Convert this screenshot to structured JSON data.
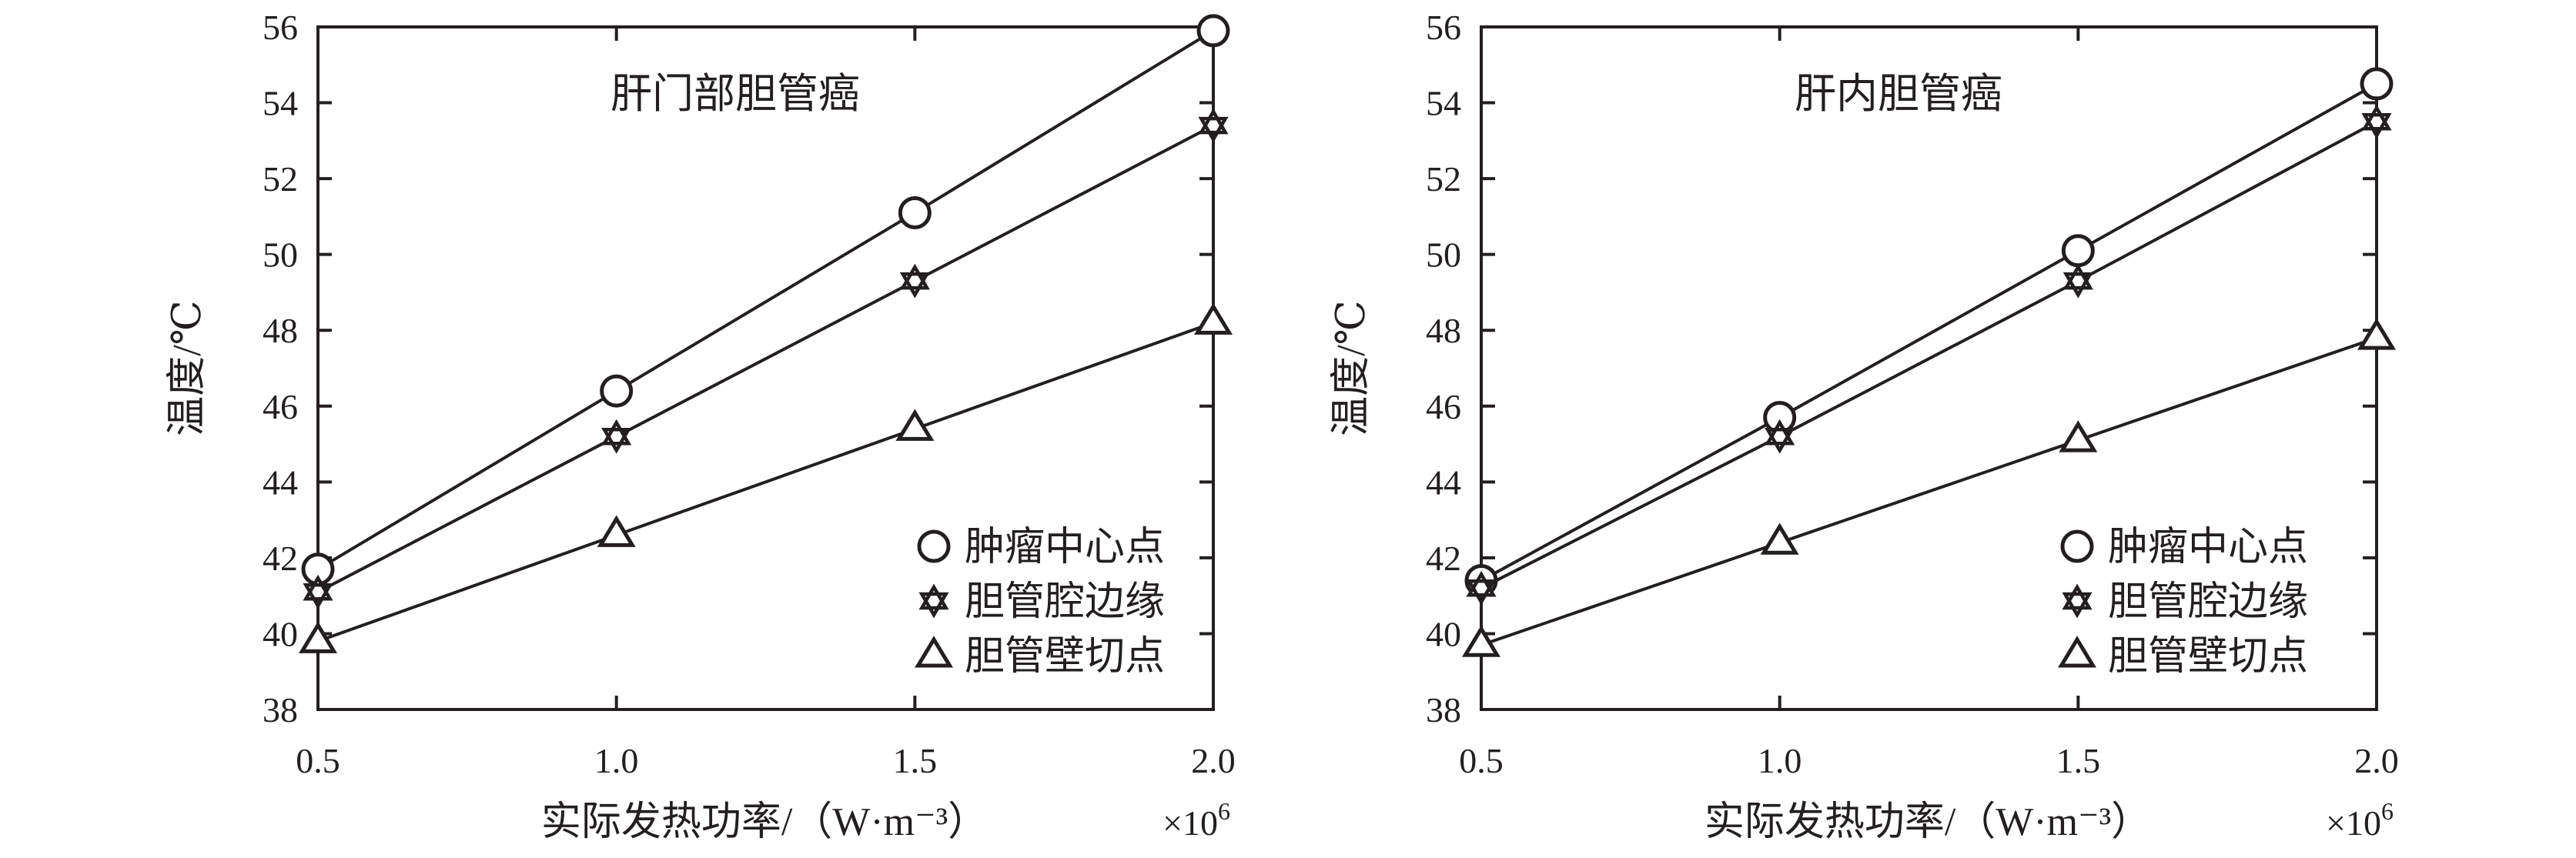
{
  "chart_data": [
    {
      "type": "line",
      "title": "肝门部胆管癌",
      "xlabel": "实际发热功率/（W·m⁻³）",
      "x_multiplier": "×10",
      "x_multiplier_exp": "6",
      "ylabel": "温度/℃",
      "x": [
        0.5,
        1.0,
        1.5,
        2.0
      ],
      "xlim": [
        0.5,
        2.0
      ],
      "ylim": [
        38,
        56
      ],
      "xticks": [
        "0.5",
        "1.0",
        "1.5",
        "2.0"
      ],
      "yticks": [
        "38",
        "40",
        "42",
        "44",
        "46",
        "48",
        "50",
        "52",
        "54",
        "56"
      ],
      "grid": false,
      "legend_position": "bottom-right",
      "series": [
        {
          "name": "肿瘤中心点",
          "marker": "circle",
          "values": [
            41.7,
            46.4,
            51.1,
            55.9
          ]
        },
        {
          "name": "胆管腔边缘",
          "marker": "star",
          "values": [
            41.1,
            45.2,
            49.3,
            53.4
          ]
        },
        {
          "name": "胆管壁切点",
          "marker": "triangle",
          "values": [
            39.8,
            42.6,
            45.4,
            48.2
          ]
        }
      ]
    },
    {
      "type": "line",
      "title": "肝内胆管癌",
      "xlabel": "实际发热功率/（W·m⁻³）",
      "x_multiplier": "×10",
      "x_multiplier_exp": "6",
      "ylabel": "温度/℃",
      "x": [
        0.5,
        1.0,
        1.5,
        2.0
      ],
      "xlim": [
        0.5,
        2.0
      ],
      "ylim": [
        38,
        56
      ],
      "xticks": [
        "0.5",
        "1.0",
        "1.5",
        "2.0"
      ],
      "yticks": [
        "38",
        "40",
        "42",
        "44",
        "46",
        "48",
        "50",
        "52",
        "54",
        "56"
      ],
      "grid": false,
      "legend_position": "bottom-right",
      "series": [
        {
          "name": "肿瘤中心点",
          "marker": "circle",
          "values": [
            41.4,
            45.7,
            50.1,
            54.5
          ]
        },
        {
          "name": "胆管腔边缘",
          "marker": "star",
          "values": [
            41.2,
            45.2,
            49.3,
            53.5
          ]
        },
        {
          "name": "胆管壁切点",
          "marker": "triangle",
          "values": [
            39.7,
            42.4,
            45.1,
            47.8
          ]
        }
      ]
    }
  ]
}
